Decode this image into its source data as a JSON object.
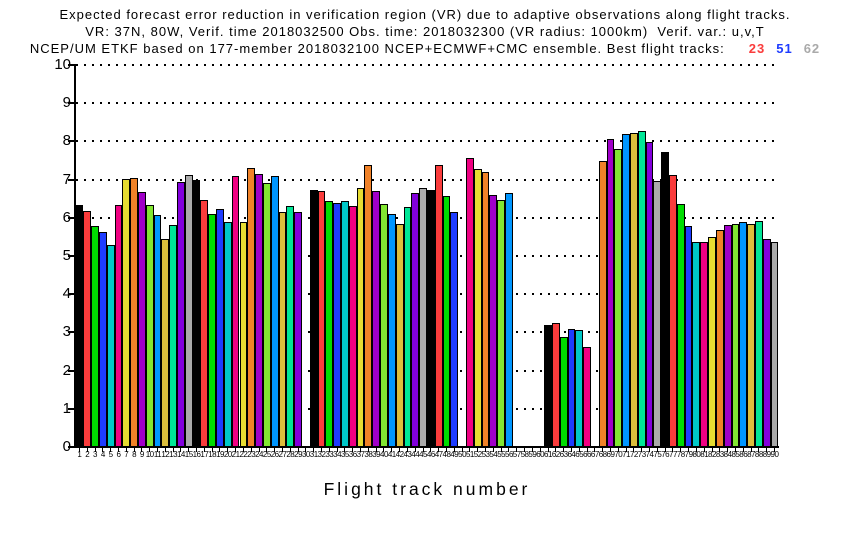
{
  "title": {
    "line1": "Expected forecast error reduction in verification region (VR) due to adaptive observations along flight tracks.",
    "line2": "VR: 37N, 80W, Verif. time 2018032500 Obs. time: 2018032300 (VR radius: 1000km)  Verif. var.: u,v,T",
    "line3_prefix": "NCEP/UM ETKF based on 177-member 2018032100 NCEP+ECMWF+CMC ensemble. Best flight tracks:",
    "best_tracks": [
      {
        "label": "23",
        "color": "#FA3C3C"
      },
      {
        "label": "51",
        "color": "#1E3CFF"
      },
      {
        "label": "62",
        "color": "#AAAAAA"
      }
    ]
  },
  "chart_data": {
    "type": "bar",
    "xlabel": "Flight track number",
    "ylabel": "",
    "ylim": [
      0,
      10
    ],
    "yticks": [
      0,
      1,
      2,
      3,
      4,
      5,
      6,
      7,
      8,
      9,
      10
    ],
    "grid": "horizontal dotted black lines at every integer y value",
    "x_min": 1,
    "x_max": 90,
    "x_step": 1,
    "x_tick_labels": "every integer track number 1 through 90 (labels overlap)",
    "missing_tracks": [
      30,
      50,
      57,
      58,
      59,
      60,
      67
    ],
    "palette_cycle": [
      "#000000",
      "#FA3C3C",
      "#00DC00",
      "#1E3CFF",
      "#00C8C8",
      "#F00082",
      "#E6DC32",
      "#F08228",
      "#A000C8",
      "#82E632",
      "#0096FF",
      "#DCBE3C",
      "#00E696",
      "#8200DC",
      "#AAAAAA"
    ],
    "bar_color_rule": "bar color = palette_cycle[(track_number - 1) mod 15], black outline",
    "values": [
      6.33,
      6.18,
      5.79,
      5.62,
      5.28,
      6.34,
      7.01,
      7.04,
      6.68,
      6.33,
      6.08,
      5.44,
      5.8,
      6.94,
      7.12,
      6.99,
      6.47,
      6.1,
      6.23,
      5.88,
      7.1,
      5.88,
      7.3,
      7.14,
      6.92,
      7.1,
      6.16,
      6.32,
      6.16,
      null,
      6.73,
      6.7,
      6.43,
      6.38,
      6.43,
      6.3,
      6.78,
      7.38,
      6.7,
      6.35,
      6.1,
      5.83,
      6.28,
      6.66,
      6.79,
      6.74,
      7.39,
      6.56,
      6.15,
      null,
      7.56,
      7.29,
      7.2,
      6.6,
      6.47,
      6.66,
      null,
      null,
      null,
      null,
      3.19,
      3.25,
      2.87,
      3.09,
      3.06,
      2.63,
      null,
      7.48,
      8.06,
      7.81,
      8.2,
      8.23,
      8.26,
      7.99,
      6.97,
      7.71,
      7.13,
      6.35,
      5.78,
      5.36,
      5.36,
      5.51,
      5.67,
      5.82,
      5.85,
      5.88,
      5.85,
      5.92,
      5.44,
      5.37
    ]
  }
}
